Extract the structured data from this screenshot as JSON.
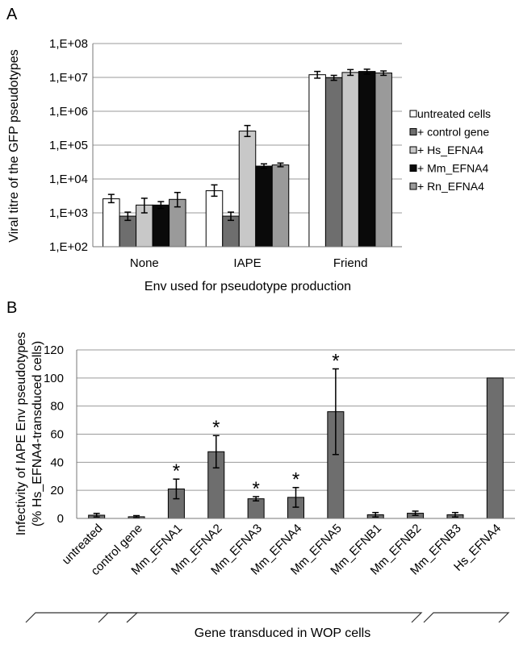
{
  "panels": {
    "a": {
      "letter": "A"
    },
    "b": {
      "letter": "B"
    }
  },
  "chart_data": [
    {
      "type": "bar",
      "panel": "A",
      "scale": "log",
      "ylim": [
        100,
        100000000
      ],
      "yticks": [
        {
          "value": 100,
          "label": "1,E+02"
        },
        {
          "value": 1000,
          "label": "1,E+03"
        },
        {
          "value": 10000,
          "label": "1,E+04"
        },
        {
          "value": 100000,
          "label": "1,E+05"
        },
        {
          "value": 1000000,
          "label": "1,E+06"
        },
        {
          "value": 10000000,
          "label": "1,E+07"
        },
        {
          "value": 100000000,
          "label": "1,E+08"
        }
      ],
      "categories": [
        "None",
        "IAPE",
        "Friend"
      ],
      "xlabel": "Env used for pseudotype production",
      "ylabel": "Viral titre of the GFP pseudotypes",
      "grid": true,
      "legend_position": "right",
      "series": [
        {
          "name": "untreated cells",
          "color": "#ffffff",
          "values": [
            2600,
            4500,
            12000000
          ],
          "err_low": [
            2000,
            3100,
            9500000
          ],
          "err_high": [
            3500,
            6700,
            15000000
          ]
        },
        {
          "name": "+ control gene",
          "color": "#6e6e6e",
          "values": [
            800,
            800,
            9800000
          ],
          "err_low": [
            600,
            600,
            8200000
          ],
          "err_high": [
            1050,
            1050,
            11500000
          ]
        },
        {
          "name": "+ Hs_EFNA4",
          "color": "#c8c8c8",
          "values": [
            1700,
            260000,
            14000000
          ],
          "err_low": [
            1000,
            180000,
            11500000
          ],
          "err_high": [
            2700,
            380000,
            17000000
          ]
        },
        {
          "name": "+ Mm_EFNA4",
          "color": "#0a0a0a",
          "values": [
            1700,
            24000,
            15000000
          ],
          "err_low": [
            1350,
            20500,
            12500000
          ],
          "err_high": [
            2150,
            28000,
            17500000
          ]
        },
        {
          "name": "+ Rn_EFNA4",
          "color": "#9a9a9a",
          "values": [
            2500,
            26000,
            13500000
          ],
          "err_low": [
            1500,
            23000,
            11500000
          ],
          "err_high": [
            4000,
            29500,
            15500000
          ]
        }
      ]
    },
    {
      "type": "bar",
      "panel": "B",
      "ylim": [
        0,
        120
      ],
      "yticks": [
        0,
        20,
        40,
        60,
        80,
        100,
        120
      ],
      "categories": [
        "untreated",
        "control gene",
        "Mm_EFNA1",
        "Mm_EFNA2",
        "Mm_EFNA3",
        "Mm_EFNA4",
        "Mm_EFNA5",
        "Mm_EFNB1",
        "Mm_EFNB2",
        "Mm_EFNB3",
        "Hs_EFNA4"
      ],
      "values": [
        2.3,
        1.2,
        21,
        47.5,
        14,
        15,
        76,
        2.6,
        3.7,
        2.6,
        100
      ],
      "err_low": [
        1.0,
        0.4,
        14,
        36,
        12.5,
        8,
        45.5,
        1.0,
        2.2,
        1.0,
        100
      ],
      "err_high": [
        3.6,
        2.0,
        28,
        59,
        15.5,
        22,
        106.5,
        4.2,
        5.2,
        4.2,
        100
      ],
      "significant": [
        false,
        false,
        true,
        true,
        true,
        true,
        true,
        false,
        false,
        false,
        false
      ],
      "significance_mark": "*",
      "color": "#6e6e6e",
      "ylabel_line1": "Infectivity of IAPE Env pseudotypes",
      "ylabel_line2": "(% Hs_EFNA4-transduced cells)",
      "xlabel": "Gene transduced in WOP cells",
      "grid": true
    }
  ]
}
